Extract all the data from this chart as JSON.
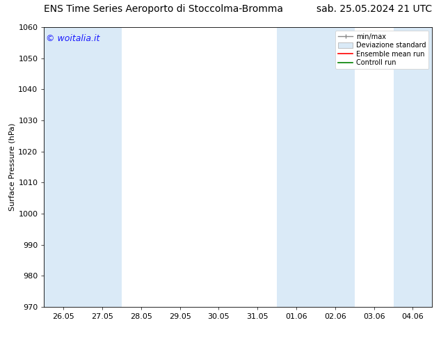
{
  "title_left": "ENS Time Series Aeroporto di Stoccolma-Bromma",
  "title_right": "sab. 25.05.2024 21 UTC",
  "ylabel": "Surface Pressure (hPa)",
  "ylim": [
    970,
    1060
  ],
  "yticks": [
    970,
    980,
    990,
    1000,
    1010,
    1020,
    1030,
    1040,
    1050,
    1060
  ],
  "xtick_labels": [
    "26.05",
    "27.05",
    "28.05",
    "29.05",
    "30.05",
    "31.05",
    "01.06",
    "02.06",
    "03.06",
    "04.06"
  ],
  "watermark": "© woitalia.it",
  "watermark_color": "#1a1aff",
  "bg_color": "#ffffff",
  "shaded_band_color": "#daeaf7",
  "legend_labels": [
    "min/max",
    "Deviazione standard",
    "Ensemble mean run",
    "Controll run"
  ],
  "title_fontsize": 10,
  "tick_fontsize": 8,
  "ylabel_fontsize": 8,
  "watermark_fontsize": 9,
  "shaded_ranges": [
    [
      0.0,
      0.5
    ],
    [
      0.5,
      1.5
    ],
    [
      5.5,
      7.5
    ],
    [
      8.5,
      9.5
    ]
  ],
  "xlim": [
    0.0,
    9.5
  ]
}
